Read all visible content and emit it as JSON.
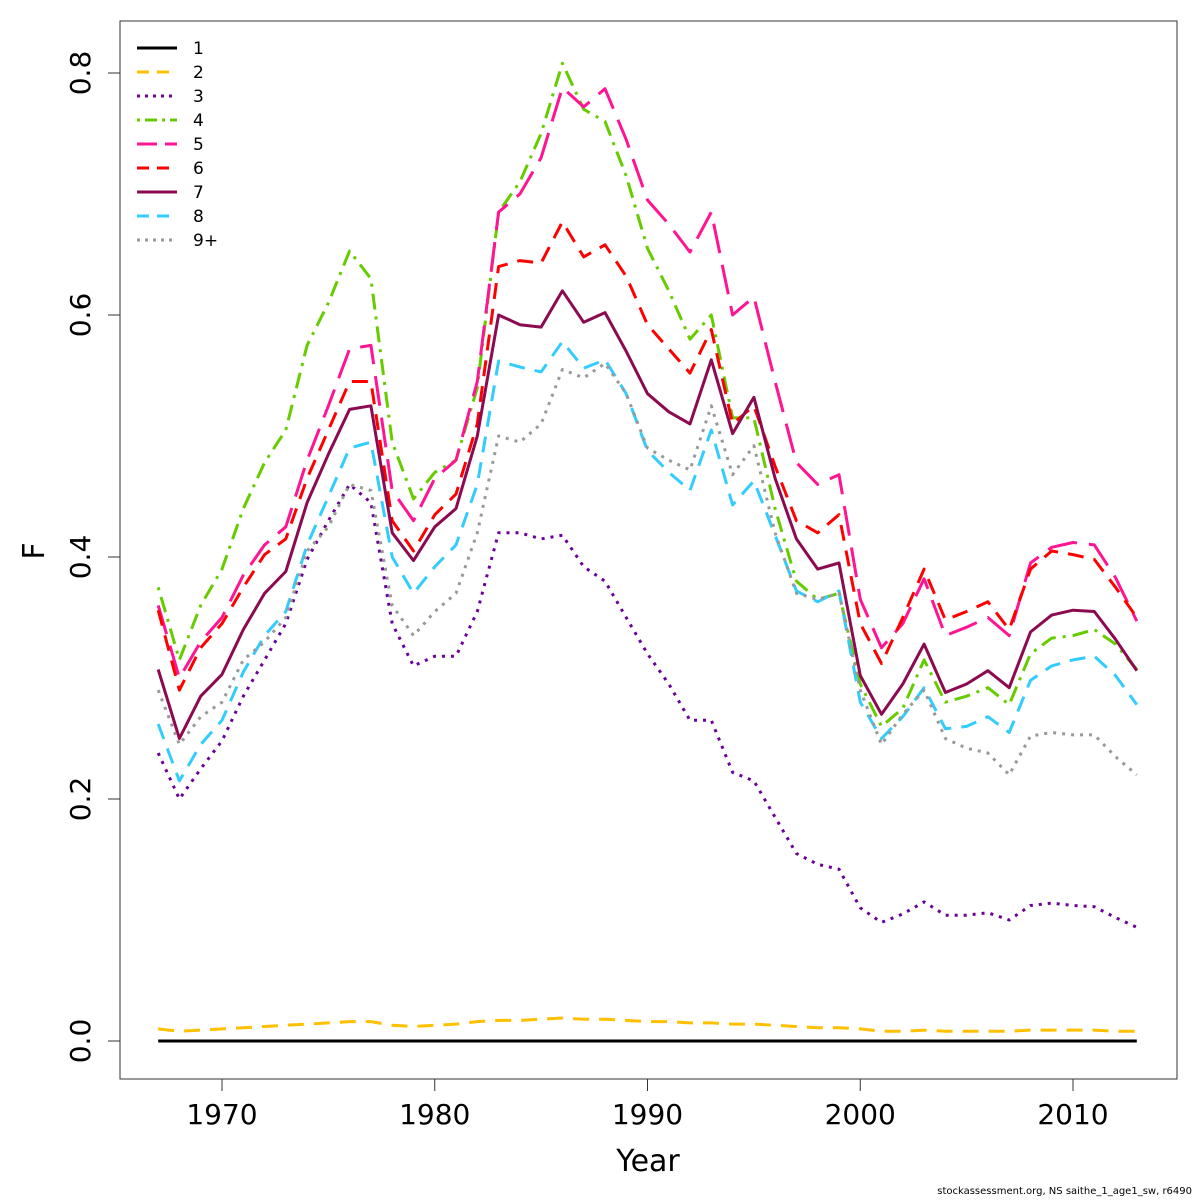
{
  "chart_data": {
    "type": "line",
    "xlabel": "Year",
    "ylabel": "F",
    "xlim": [
      1967,
      2013
    ],
    "ylim": [
      0,
      0.8
    ],
    "x_ticks": [
      1970,
      1980,
      1990,
      2000,
      2010
    ],
    "y_ticks": [
      0.0,
      0.2,
      0.4,
      0.6,
      0.8
    ],
    "y_tick_labels": [
      "0.0",
      "0.2",
      "0.4",
      "0.6",
      "0.8"
    ],
    "grid": false,
    "legend_position": "top-left",
    "x": [
      1967,
      1968,
      1969,
      1970,
      1971,
      1972,
      1973,
      1974,
      1975,
      1976,
      1977,
      1978,
      1979,
      1980,
      1981,
      1982,
      1983,
      1984,
      1985,
      1986,
      1987,
      1988,
      1989,
      1990,
      1991,
      1992,
      1993,
      1994,
      1995,
      1996,
      1997,
      1998,
      1999,
      2000,
      2001,
      2002,
      2003,
      2004,
      2005,
      2006,
      2007,
      2008,
      2009,
      2010,
      2011,
      2012,
      2013
    ],
    "series": [
      {
        "name": "1",
        "color": "#000000",
        "dash": "solid",
        "width": 3,
        "values": [
          0.0,
          0.0,
          0.0,
          0.0,
          0.0,
          0.0,
          0.0,
          0.0,
          0.0,
          0.0,
          0.0,
          0.0,
          0.0,
          0.0,
          0.0,
          0.0,
          0.0,
          0.0,
          0.0,
          0.0,
          0.0,
          0.0,
          0.0,
          0.0,
          0.0,
          0.0,
          0.0,
          0.0,
          0.0,
          0.0,
          0.0,
          0.0,
          0.0,
          0.0,
          0.0,
          0.0,
          0.0,
          0.0,
          0.0,
          0.0,
          0.0,
          0.0,
          0.0,
          0.0,
          0.0,
          0.0,
          0.0
        ]
      },
      {
        "name": "2",
        "color": "#FFC000",
        "dash": "dashed",
        "width": 3,
        "values": [
          0.01,
          0.008,
          0.009,
          0.01,
          0.011,
          0.012,
          0.013,
          0.014,
          0.015,
          0.016,
          0.016,
          0.013,
          0.012,
          0.013,
          0.014,
          0.016,
          0.017,
          0.017,
          0.018,
          0.019,
          0.018,
          0.018,
          0.017,
          0.016,
          0.016,
          0.015,
          0.015,
          0.014,
          0.014,
          0.013,
          0.012,
          0.011,
          0.011,
          0.01,
          0.008,
          0.008,
          0.009,
          0.008,
          0.008,
          0.008,
          0.008,
          0.009,
          0.009,
          0.009,
          0.009,
          0.008,
          0.008
        ]
      },
      {
        "name": "3",
        "color": "#6A0099",
        "dash": "dotted",
        "width": 3,
        "values": [
          0.238,
          0.2,
          0.225,
          0.248,
          0.285,
          0.315,
          0.345,
          0.398,
          0.43,
          0.46,
          0.445,
          0.345,
          0.31,
          0.318,
          0.318,
          0.355,
          0.42,
          0.42,
          0.415,
          0.418,
          0.392,
          0.38,
          0.35,
          0.32,
          0.295,
          0.265,
          0.265,
          0.222,
          0.215,
          0.185,
          0.155,
          0.146,
          0.142,
          0.11,
          0.098,
          0.105,
          0.115,
          0.104,
          0.104,
          0.106,
          0.1,
          0.112,
          0.114,
          0.112,
          0.111,
          0.102,
          0.094
        ]
      },
      {
        "name": "4",
        "color": "#66CC00",
        "dash": "dashdot",
        "width": 3,
        "values": [
          0.375,
          0.315,
          0.36,
          0.39,
          0.44,
          0.478,
          0.505,
          0.575,
          0.61,
          0.653,
          0.63,
          0.495,
          0.448,
          0.47,
          0.48,
          0.54,
          0.685,
          0.71,
          0.75,
          0.808,
          0.77,
          0.76,
          0.715,
          0.655,
          0.62,
          0.58,
          0.6,
          0.515,
          0.515,
          0.44,
          0.38,
          0.365,
          0.37,
          0.295,
          0.26,
          0.275,
          0.315,
          0.28,
          0.285,
          0.292,
          0.278,
          0.32,
          0.333,
          0.335,
          0.34,
          0.328,
          0.307
        ]
      },
      {
        "name": "5",
        "color": "#FF1493",
        "dash": "longdash",
        "width": 3,
        "values": [
          0.36,
          0.3,
          0.33,
          0.35,
          0.385,
          0.41,
          0.425,
          0.48,
          0.525,
          0.572,
          0.575,
          0.455,
          0.43,
          0.465,
          0.48,
          0.545,
          0.685,
          0.7,
          0.73,
          0.788,
          0.772,
          0.787,
          0.745,
          0.695,
          0.675,
          0.652,
          0.685,
          0.6,
          0.615,
          0.545,
          0.478,
          0.46,
          0.468,
          0.365,
          0.325,
          0.345,
          0.382,
          0.335,
          0.342,
          0.35,
          0.335,
          0.395,
          0.408,
          0.412,
          0.41,
          0.383,
          0.347
        ]
      },
      {
        "name": "6",
        "color": "#FF0000",
        "dash": "dashed",
        "width": 3,
        "values": [
          0.356,
          0.29,
          0.325,
          0.345,
          0.375,
          0.402,
          0.415,
          0.465,
          0.505,
          0.545,
          0.545,
          0.43,
          0.405,
          0.435,
          0.452,
          0.51,
          0.64,
          0.645,
          0.643,
          0.677,
          0.648,
          0.658,
          0.632,
          0.592,
          0.572,
          0.552,
          0.588,
          0.51,
          0.525,
          0.475,
          0.43,
          0.42,
          0.435,
          0.345,
          0.312,
          0.35,
          0.39,
          0.348,
          0.355,
          0.363,
          0.34,
          0.39,
          0.405,
          0.402,
          0.398,
          0.375,
          0.35
        ]
      },
      {
        "name": "7",
        "color": "#8B0A50",
        "dash": "solid",
        "width": 3,
        "values": [
          0.307,
          0.25,
          0.285,
          0.303,
          0.34,
          0.37,
          0.388,
          0.445,
          0.485,
          0.522,
          0.525,
          0.42,
          0.397,
          0.425,
          0.44,
          0.5,
          0.6,
          0.592,
          0.59,
          0.62,
          0.594,
          0.602,
          0.57,
          0.535,
          0.52,
          0.51,
          0.563,
          0.502,
          0.532,
          0.465,
          0.415,
          0.39,
          0.395,
          0.302,
          0.27,
          0.295,
          0.328,
          0.288,
          0.295,
          0.306,
          0.292,
          0.338,
          0.352,
          0.356,
          0.355,
          0.332,
          0.306
        ]
      },
      {
        "name": "8",
        "color": "#33CCFF",
        "dash": "dashed",
        "width": 3,
        "values": [
          0.262,
          0.215,
          0.245,
          0.265,
          0.305,
          0.335,
          0.355,
          0.41,
          0.45,
          0.49,
          0.495,
          0.4,
          0.37,
          0.392,
          0.41,
          0.46,
          0.562,
          0.557,
          0.553,
          0.578,
          0.556,
          0.563,
          0.535,
          0.488,
          0.47,
          0.455,
          0.505,
          0.443,
          0.463,
          0.418,
          0.372,
          0.363,
          0.372,
          0.28,
          0.25,
          0.268,
          0.292,
          0.258,
          0.26,
          0.268,
          0.255,
          0.298,
          0.31,
          0.315,
          0.318,
          0.302,
          0.278
        ]
      },
      {
        "name": "9+",
        "color": "#999999",
        "dash": "dotted",
        "width": 3,
        "values": [
          0.29,
          0.245,
          0.268,
          0.28,
          0.315,
          0.33,
          0.35,
          0.405,
          0.425,
          0.46,
          0.455,
          0.36,
          0.335,
          0.355,
          0.37,
          0.42,
          0.5,
          0.495,
          0.51,
          0.555,
          0.548,
          0.56,
          0.535,
          0.49,
          0.48,
          0.472,
          0.525,
          0.468,
          0.492,
          0.42,
          0.37,
          0.365,
          0.37,
          0.29,
          0.245,
          0.27,
          0.29,
          0.25,
          0.242,
          0.238,
          0.22,
          0.252,
          0.255,
          0.253,
          0.253,
          0.235,
          0.22
        ]
      }
    ]
  },
  "credit": "stockassessment.org, NS saithe_1_age1_sw, r6490"
}
